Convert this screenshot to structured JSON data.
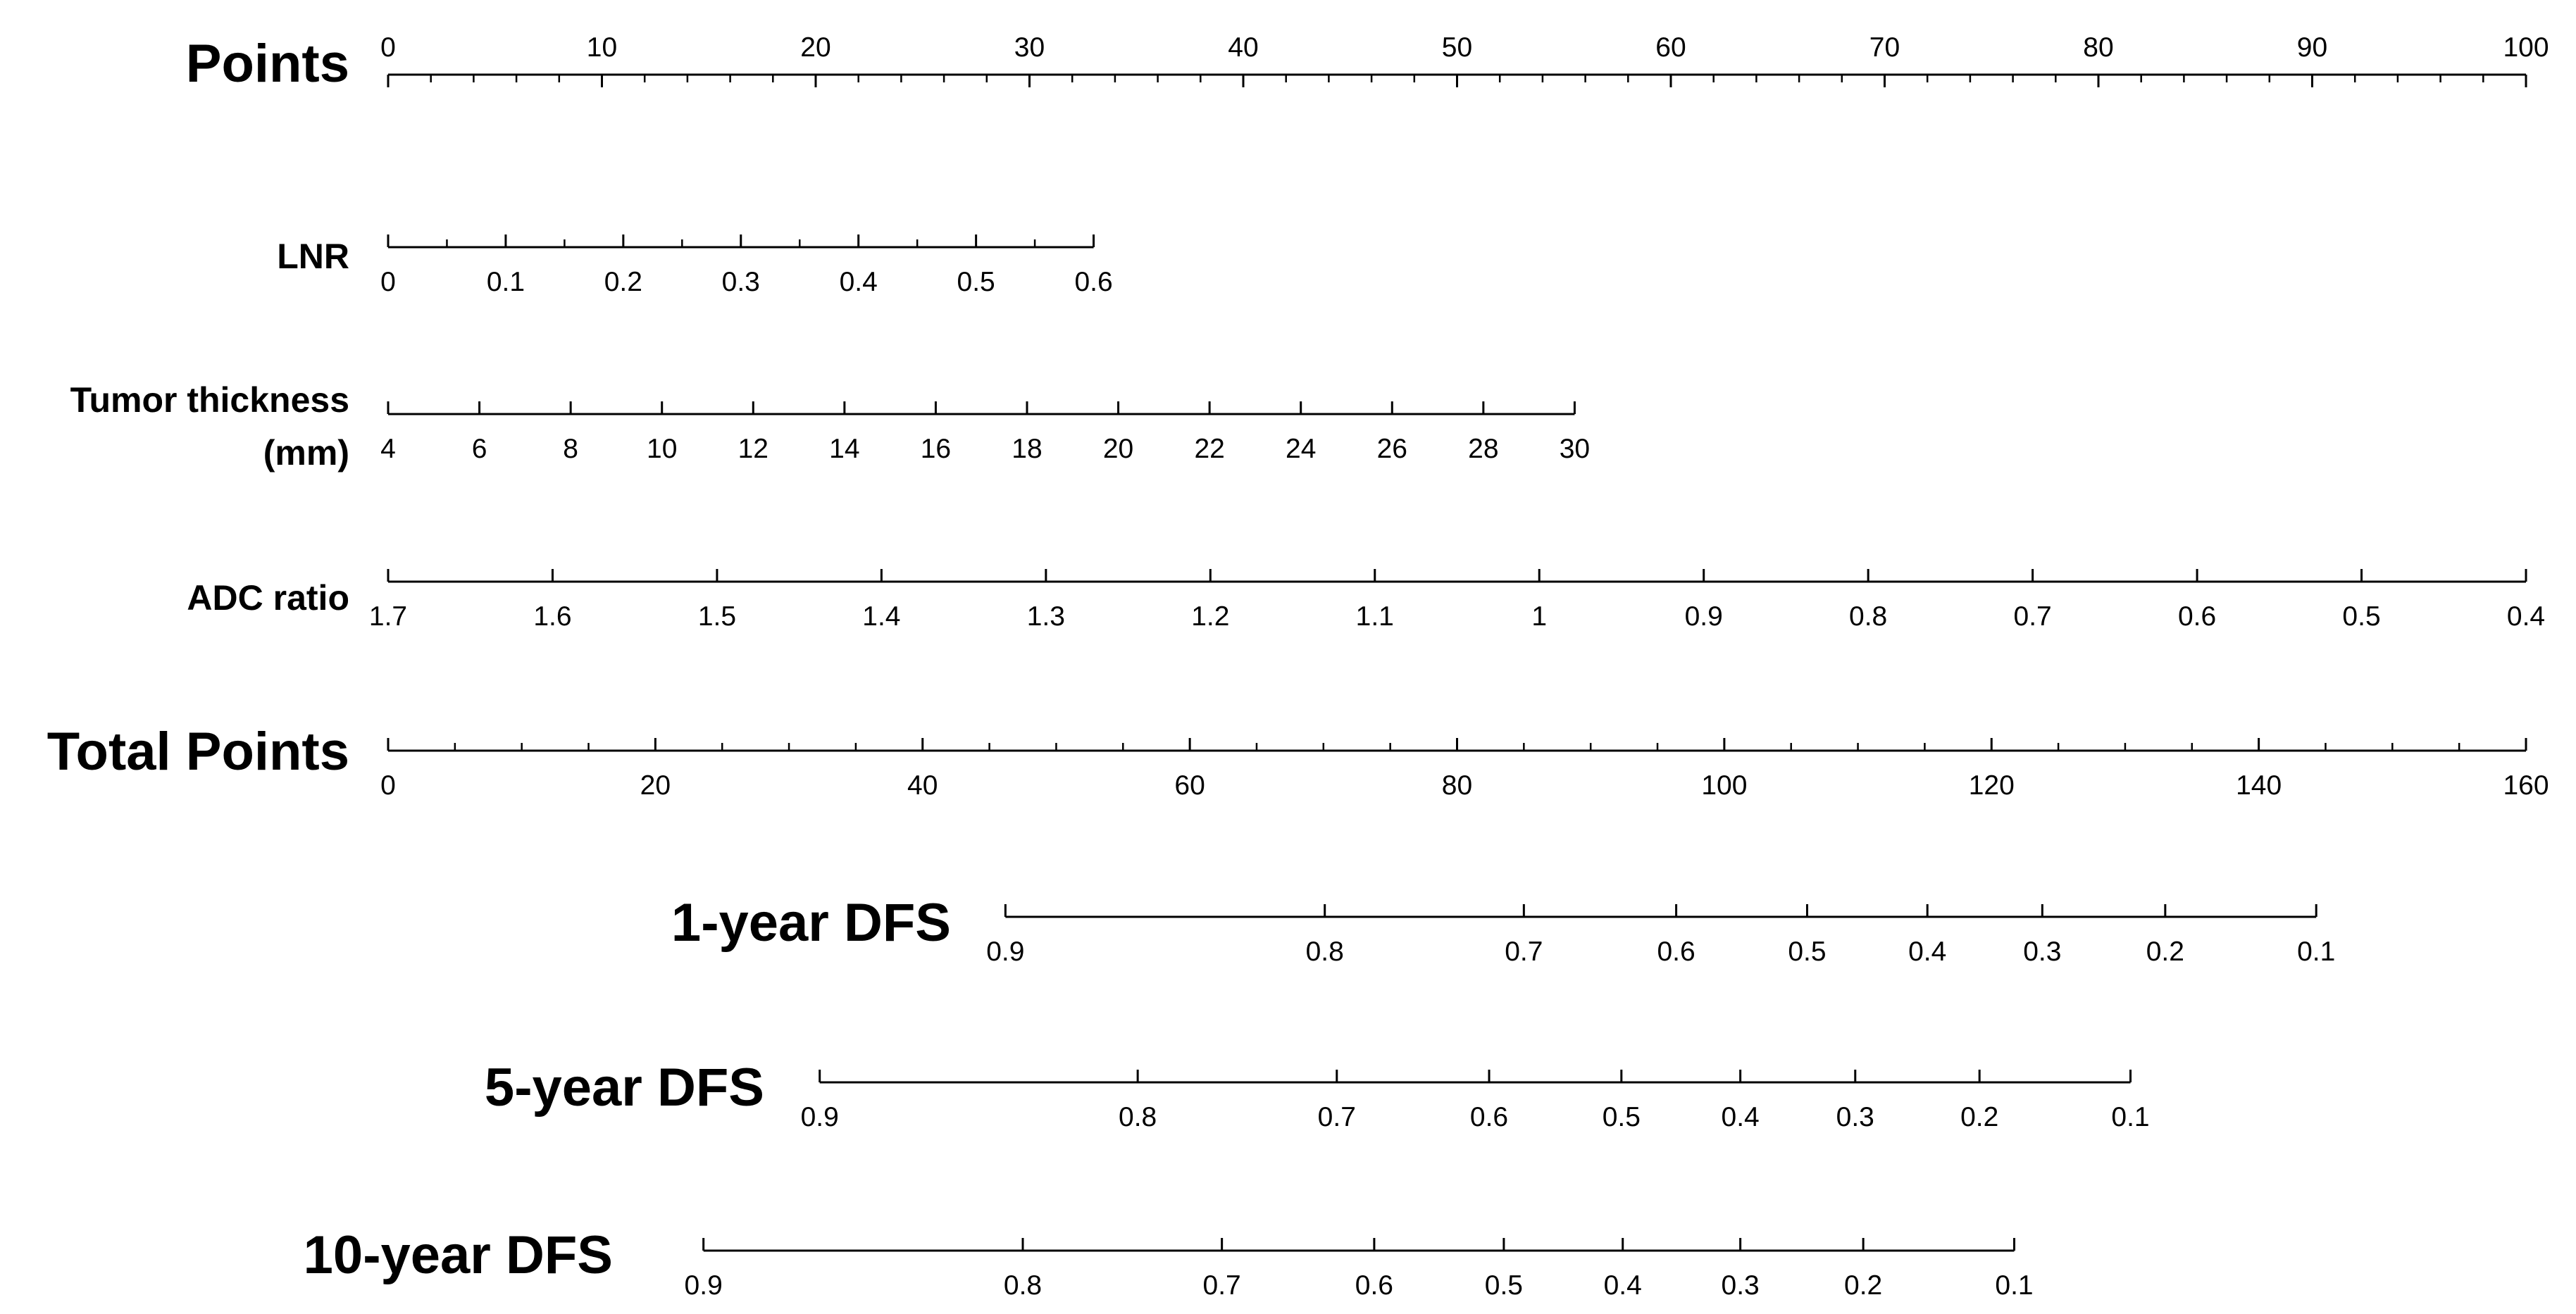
{
  "chart_data": {
    "type": "nomogram",
    "rows": [
      {
        "key": "points",
        "label": "Points",
        "label_lines": [
          "Points"
        ],
        "label_size": "large",
        "ticks_above": true,
        "ticks": [
          "0",
          "10",
          "20",
          "30",
          "40",
          "50",
          "60",
          "70",
          "80",
          "90",
          "100"
        ],
        "values": [
          0,
          10,
          20,
          30,
          40,
          50,
          60,
          70,
          80,
          90,
          100
        ],
        "minor_between": 4,
        "points_range": [
          0,
          100
        ]
      },
      {
        "key": "lnr",
        "label": "LNR",
        "label_lines": [
          "LNR"
        ],
        "label_size": "small",
        "ticks_above": false,
        "ticks": [
          "0",
          "0.1",
          "0.2",
          "0.3",
          "0.4",
          "0.5",
          "0.6"
        ],
        "values": [
          0,
          0.1,
          0.2,
          0.3,
          0.4,
          0.5,
          0.6
        ],
        "minor_between": 1,
        "points_range": [
          0,
          33
        ]
      },
      {
        "key": "thickness",
        "label": "Tumor thickness (mm)",
        "label_lines": [
          "Tumor thickness",
          "(mm)"
        ],
        "label_size": "small",
        "ticks_above": false,
        "ticks": [
          "4",
          "6",
          "8",
          "10",
          "12",
          "14",
          "16",
          "18",
          "20",
          "22",
          "24",
          "26",
          "28",
          "30"
        ],
        "values": [
          4,
          6,
          8,
          10,
          12,
          14,
          16,
          18,
          20,
          22,
          24,
          26,
          28,
          30
        ],
        "minor_between": 0,
        "points_range": [
          0,
          55.5
        ]
      },
      {
        "key": "adc",
        "label": "ADC ratio",
        "label_lines": [
          "ADC ratio"
        ],
        "label_size": "small",
        "ticks_above": false,
        "ticks": [
          "1.7",
          "1.6",
          "1.5",
          "1.4",
          "1.3",
          "1.2",
          "1.1",
          "1",
          "0.9",
          "0.8",
          "0.7",
          "0.6",
          "0.5",
          "0.4"
        ],
        "values": [
          1.7,
          1.6,
          1.5,
          1.4,
          1.3,
          1.2,
          1.1,
          1,
          0.9,
          0.8,
          0.7,
          0.6,
          0.5,
          0.4
        ],
        "minor_between": 0,
        "points_range": [
          0,
          100
        ]
      },
      {
        "key": "total",
        "label": "Total Points",
        "label_lines": [
          "Total Points"
        ],
        "label_size": "large",
        "ticks_above": false,
        "ticks": [
          "0",
          "20",
          "40",
          "60",
          "80",
          "100",
          "120",
          "140",
          "160"
        ],
        "values": [
          0,
          20,
          40,
          60,
          80,
          100,
          120,
          140,
          160
        ],
        "minor_between": 3,
        "points_range": [
          0,
          100
        ]
      },
      {
        "key": "dfs1",
        "label": "1-year DFS",
        "label_lines": [
          "1-year DFS"
        ],
        "label_size": "large",
        "ticks_above": false,
        "ticks": [
          "0.9",
          "0.8",
          "0.7",
          "0.6",
          "0.5",
          "0.4",
          "0.3",
          "0.2",
          "0.1"
        ],
        "values": [
          0.9,
          0.8,
          0.7,
          0.6,
          0.5,
          0.4,
          0.3,
          0.2,
          0.1
        ],
        "total_points_at_tick": [
          46.2,
          70.1,
          85.0,
          96.4,
          106.2,
          115.2,
          123.8,
          133.0,
          144.3
        ],
        "minor_between": 0
      },
      {
        "key": "dfs5",
        "label": "5-year DFS",
        "label_lines": [
          "5-year DFS"
        ],
        "label_size": "large",
        "ticks_above": false,
        "ticks": [
          "0.9",
          "0.8",
          "0.7",
          "0.6",
          "0.5",
          "0.4",
          "0.3",
          "0.2",
          "0.1"
        ],
        "values": [
          0.9,
          0.8,
          0.7,
          0.6,
          0.5,
          0.4,
          0.3,
          0.2,
          0.1
        ],
        "total_points_at_tick": [
          32.3,
          56.1,
          71.0,
          82.4,
          92.3,
          101.2,
          109.8,
          119.1,
          130.4
        ],
        "minor_between": 0
      },
      {
        "key": "dfs10",
        "label": "10-year DFS",
        "label_lines": [
          "10-year DFS"
        ],
        "label_size": "large",
        "ticks_above": false,
        "ticks": [
          "0.9",
          "0.8",
          "0.7",
          "0.6",
          "0.5",
          "0.4",
          "0.3",
          "0.2",
          "0.1"
        ],
        "values": [
          0.9,
          0.8,
          0.7,
          0.6,
          0.5,
          0.4,
          0.3,
          0.2,
          0.1
        ],
        "total_points_at_tick": [
          23.6,
          47.5,
          62.4,
          73.8,
          83.5,
          92.4,
          101.2,
          110.4,
          121.7
        ],
        "minor_between": 0
      }
    ]
  }
}
